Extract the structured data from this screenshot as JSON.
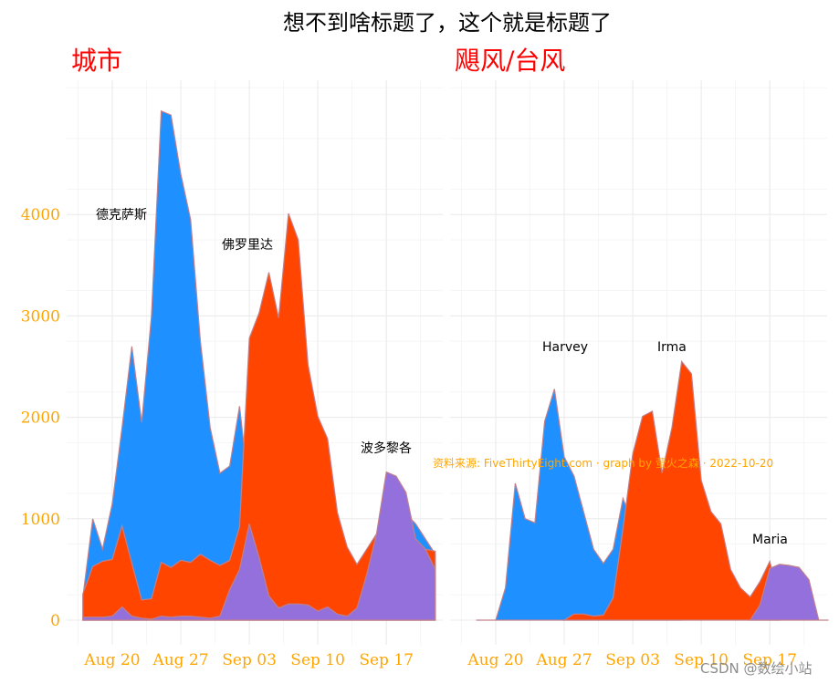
{
  "title": "想不到啥标题了，这个就是标题了",
  "caption": "资料来源: FiveThirtyEight.com · graph by 萤火之森 · 2022-10-20",
  "watermark": "CSDN @数绘小站",
  "colors": {
    "blue": "#1e90ff",
    "red": "#ff4500",
    "purple": "#9370db",
    "panel_title": "#ff0000",
    "tick_label": "#ffa500",
    "caption": "#ffa500"
  },
  "chart_data": [
    {
      "type": "area",
      "panel_title": "城市",
      "x_ticks": [
        "Aug 20",
        "Aug 27",
        "Sep 03",
        "Sep 10",
        "Sep 17"
      ],
      "x_tick_days": [
        0,
        7,
        14,
        21,
        28
      ],
      "y_ticks": [
        "0",
        "1000",
        "2000",
        "3000",
        "4000"
      ],
      "y_tick_values": [
        0,
        1000,
        2000,
        3000,
        4000
      ],
      "ylim": [
        0,
        5000
      ],
      "x_range_days": [
        -3,
        33
      ],
      "grid": true,
      "stacking": "overlay",
      "series": [
        {
          "label": "德克萨斯",
          "color": "#1e90ff",
          "x": [
            -3,
            -2,
            -1,
            0,
            1,
            2,
            3,
            4,
            5,
            6,
            7,
            8,
            9,
            10,
            11,
            12,
            13,
            14,
            15,
            16,
            17,
            18,
            19,
            20,
            21,
            22,
            23,
            24,
            25,
            26,
            27,
            28,
            29,
            30,
            31,
            32,
            33
          ],
          "y": [
            230,
            1000,
            700,
            1150,
            1900,
            2700,
            1950,
            3000,
            5020,
            4980,
            4400,
            3950,
            2750,
            1900,
            1450,
            1520,
            2110,
            1250,
            1250,
            1300,
            1450,
            1100,
            900,
            1000,
            900,
            700,
            600,
            550,
            500,
            450,
            500,
            700,
            900,
            1050,
            950,
            800,
            650
          ]
        },
        {
          "label": "佛罗里达",
          "color": "#ff4500",
          "x": [
            -3,
            -2,
            -1,
            0,
            1,
            2,
            3,
            4,
            5,
            6,
            7,
            8,
            9,
            10,
            11,
            12,
            13,
            14,
            15,
            16,
            17,
            18,
            19,
            20,
            21,
            22,
            23,
            24,
            25,
            26,
            27,
            28,
            29,
            30,
            31,
            32,
            33
          ],
          "y": [
            260,
            530,
            580,
            600,
            930,
            560,
            200,
            210,
            570,
            520,
            590,
            570,
            650,
            590,
            540,
            590,
            920,
            2780,
            3030,
            3430,
            2980,
            4010,
            3750,
            2520,
            2010,
            1790,
            1060,
            720,
            550,
            700,
            850,
            970,
            980,
            900,
            800,
            700,
            680
          ]
        },
        {
          "label": "波多黎各",
          "color": "#9370db",
          "x": [
            -3,
            -2,
            -1,
            0,
            1,
            2,
            3,
            4,
            5,
            6,
            7,
            8,
            9,
            10,
            11,
            12,
            13,
            14,
            15,
            16,
            17,
            18,
            19,
            20,
            21,
            22,
            23,
            24,
            25,
            26,
            27,
            28,
            29,
            30,
            31,
            32,
            33
          ],
          "y": [
            30,
            30,
            30,
            40,
            130,
            40,
            20,
            10,
            40,
            30,
            40,
            40,
            30,
            20,
            40,
            300,
            500,
            950,
            620,
            240,
            120,
            160,
            160,
            150,
            90,
            130,
            60,
            40,
            120,
            450,
            850,
            1460,
            1420,
            1260,
            800,
            700,
            500
          ]
        }
      ],
      "annotations": [
        "德克萨斯",
        "佛罗里达",
        "波多黎各"
      ]
    },
    {
      "type": "area",
      "panel_title": "飓风/台风",
      "x_ticks": [
        "Aug 20",
        "Aug 27",
        "Sep 03",
        "Sep 10",
        "Sep 17"
      ],
      "x_tick_days": [
        0,
        7,
        14,
        21,
        28
      ],
      "ylim": [
        0,
        5000
      ],
      "x_range_days": [
        -3,
        33
      ],
      "grid": true,
      "stacking": "overlay",
      "series": [
        {
          "label": "Harvey",
          "color": "#1e90ff",
          "x": [
            -2,
            -1,
            0,
            1,
            2,
            3,
            4,
            5,
            6,
            7,
            8,
            9,
            10,
            11,
            12,
            13,
            14,
            15,
            16,
            17,
            18,
            19
          ],
          "y": [
            0,
            0,
            0,
            320,
            1350,
            1000,
            960,
            1960,
            2280,
            1610,
            1420,
            1060,
            700,
            560,
            700,
            1200,
            950,
            400,
            200,
            100,
            50,
            0
          ]
        },
        {
          "label": "Irma",
          "color": "#ff4500",
          "x": [
            7,
            8,
            9,
            10,
            11,
            12,
            13,
            14,
            15,
            16,
            17,
            18,
            19,
            20,
            21,
            22,
            23,
            24,
            25,
            26,
            27,
            28,
            29
          ],
          "y": [
            0,
            60,
            60,
            40,
            50,
            220,
            900,
            1640,
            2010,
            2060,
            1450,
            1900,
            2550,
            2430,
            1380,
            1070,
            950,
            500,
            320,
            230,
            380,
            580,
            200
          ]
        },
        {
          "label": "Maria",
          "color": "#9370db",
          "x": [
            26,
            27,
            28,
            29,
            30,
            31,
            32,
            33,
            34
          ],
          "y": [
            0,
            150,
            510,
            550,
            540,
            520,
            400,
            0,
            0
          ]
        }
      ],
      "annotations": [
        "Harvey",
        "Irma",
        "Maria"
      ]
    }
  ]
}
